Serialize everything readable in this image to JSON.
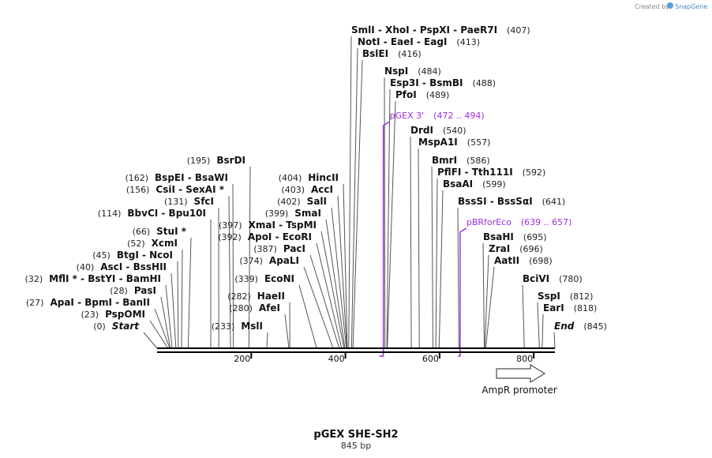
{
  "credit": {
    "prefix": "Created by",
    "brand": "SnapGene"
  },
  "title": "pGEX SHE-SH2",
  "length_label": "845 bp",
  "colors": {
    "primer": "#9b30d9",
    "line": "#555555",
    "backbone": "#000000",
    "feature_fill": "#ffffff"
  },
  "axis_ticks": [
    {
      "value": 200,
      "label": "200"
    },
    {
      "value": 400,
      "label": "400"
    },
    {
      "value": 600,
      "label": "600"
    },
    {
      "value": 800,
      "label": "800"
    }
  ],
  "features": [
    {
      "name": "AmpR promoter",
      "start": 720,
      "end": 825,
      "direction": "forward"
    }
  ],
  "primers": [
    {
      "name": "pGEX 3'",
      "range": "(472 .. 494)",
      "start": 472,
      "end": 494
    },
    {
      "name": "pBRforEco",
      "range": "(639 .. 657)",
      "start": 639,
      "end": 657
    }
  ],
  "sites": [
    {
      "text": "Start",
      "pos": 0,
      "num": "(0)",
      "side": "left",
      "italic": true
    },
    {
      "text": "PspOMI",
      "pos": 23,
      "num": "(23)",
      "side": "left"
    },
    {
      "text": "ApaI  - BpmI  - BanII",
      "pos": 27,
      "num": "(27)",
      "side": "left"
    },
    {
      "text": "PasI",
      "pos": 28,
      "num": "(28)",
      "side": "left"
    },
    {
      "text": "MflI * - BstYI  - BamHI",
      "pos": 32,
      "num": "(32)",
      "side": "left"
    },
    {
      "text": "AscI  - BssHII",
      "pos": 40,
      "num": "(40)",
      "side": "left"
    },
    {
      "text": "BtgI  - NcoI",
      "pos": 45,
      "num": "(45)",
      "side": "left"
    },
    {
      "text": "XcmI",
      "pos": 52,
      "num": "(52)",
      "side": "left"
    },
    {
      "text": "StuI *",
      "pos": 66,
      "num": "(66)",
      "side": "left"
    },
    {
      "text": "BbvCI  - Bpu10I",
      "pos": 114,
      "num": "(114)",
      "side": "left"
    },
    {
      "text": "SfcI",
      "pos": 131,
      "num": "(131)",
      "side": "left"
    },
    {
      "text": "CsiI  - SexAI *",
      "pos": 156,
      "num": "(156)",
      "side": "left"
    },
    {
      "text": "BspEI  - BsaWI",
      "pos": 162,
      "num": "(162)",
      "side": "left"
    },
    {
      "text": "BsrDI",
      "pos": 195,
      "num": "(195)",
      "side": "left"
    },
    {
      "text": "MslI",
      "pos": 233,
      "num": "(233)",
      "side": "left"
    },
    {
      "text": "AfeI",
      "pos": 280,
      "num": "(280)",
      "side": "left"
    },
    {
      "text": "HaeII",
      "pos": 282,
      "num": "(282)",
      "side": "left"
    },
    {
      "text": "EcoNI",
      "pos": 339,
      "num": "(339)",
      "side": "left"
    },
    {
      "text": "ApaLI",
      "pos": 374,
      "num": "(374)",
      "side": "left"
    },
    {
      "text": "PacI",
      "pos": 387,
      "num": "(387)",
      "side": "left"
    },
    {
      "text": "ApoI  - EcoRI",
      "pos": 392,
      "num": "(392)",
      "side": "left"
    },
    {
      "text": "XmaI  - TspMI",
      "pos": 397,
      "num": "(397)",
      "side": "left"
    },
    {
      "text": "SmaI",
      "pos": 399,
      "num": "(399)",
      "side": "left"
    },
    {
      "text": "SalI",
      "pos": 402,
      "num": "(402)",
      "side": "left"
    },
    {
      "text": "AccI",
      "pos": 403,
      "num": "(403)",
      "side": "left"
    },
    {
      "text": "HincII",
      "pos": 404,
      "num": "(404)",
      "side": "left"
    },
    {
      "text": "SmlI  - XhoI  - PspXI  - PaeR7I",
      "pos": 407,
      "num": "(407)",
      "side": "right"
    },
    {
      "text": "NotI  - EaeI  - EagI",
      "pos": 413,
      "num": "(413)",
      "side": "right"
    },
    {
      "text": "BslEI",
      "pos": 416,
      "num": "(416)",
      "side": "right"
    },
    {
      "text": "NspI",
      "pos": 484,
      "num": "(484)",
      "side": "right"
    },
    {
      "text": "Esp3I  - BsmBI",
      "pos": 488,
      "num": "(488)",
      "side": "right"
    },
    {
      "text": "PfoI",
      "pos": 489,
      "num": "(489)",
      "side": "right"
    },
    {
      "text": "DrdI",
      "pos": 540,
      "num": "(540)",
      "side": "right"
    },
    {
      "text": "MspA1I",
      "pos": 557,
      "num": "(557)",
      "side": "right"
    },
    {
      "text": "BmrI",
      "pos": 586,
      "num": "(586)",
      "side": "right"
    },
    {
      "text": "PflFI  - Tth111I",
      "pos": 592,
      "num": "(592)",
      "side": "right"
    },
    {
      "text": "BsaAI",
      "pos": 599,
      "num": "(599)",
      "side": "right"
    },
    {
      "text": "BssSI  - BssSαI",
      "pos": 641,
      "num": "(641)",
      "side": "right"
    },
    {
      "text": "BsaHI",
      "pos": 695,
      "num": "(695)",
      "side": "right"
    },
    {
      "text": "ZraI",
      "pos": 696,
      "num": "(696)",
      "side": "right"
    },
    {
      "text": "AatII",
      "pos": 698,
      "num": "(698)",
      "side": "right"
    },
    {
      "text": "BciVI",
      "pos": 780,
      "num": "(780)",
      "side": "right"
    },
    {
      "text": "SspI",
      "pos": 812,
      "num": "(812)",
      "side": "right"
    },
    {
      "text": "EarI",
      "pos": 818,
      "num": "(818)",
      "side": "right"
    },
    {
      "text": "End",
      "pos": 845,
      "num": "(845)",
      "side": "right",
      "italic": true
    }
  ]
}
